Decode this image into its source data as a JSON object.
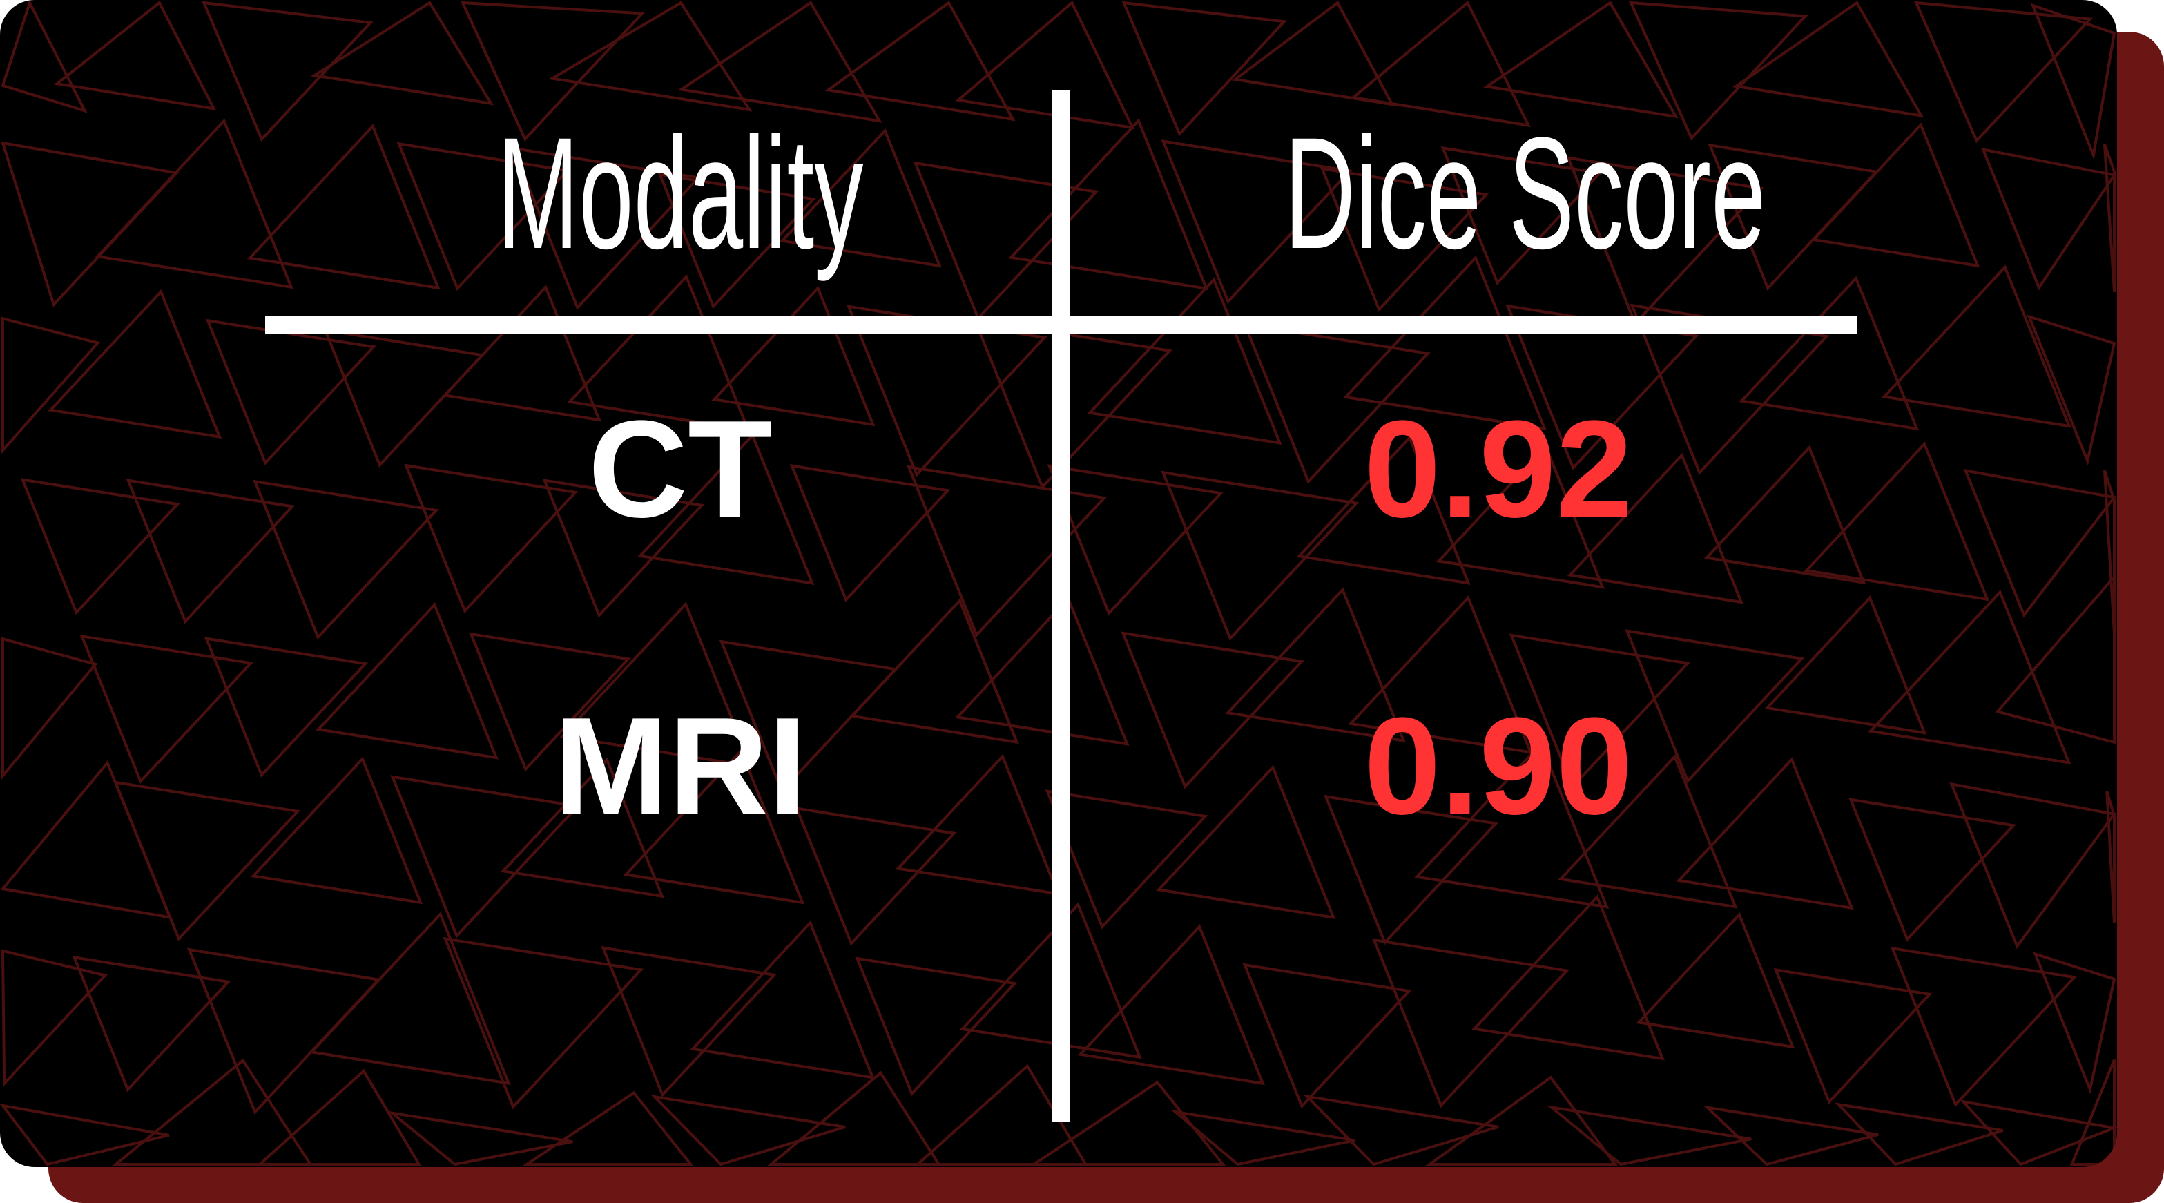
{
  "table": {
    "headers": [
      "Modality",
      "Dice Score"
    ],
    "rows": [
      {
        "modality": "CT",
        "dice": "0.92"
      },
      {
        "modality": "MRI",
        "dice": "0.90"
      }
    ]
  },
  "colors": {
    "background": "#000000",
    "shadow": "#6b1515",
    "pattern_stroke": "#4a1010",
    "text": "#ffffff",
    "value": "#ff3333"
  },
  "background_pattern": "outlined-triangles"
}
